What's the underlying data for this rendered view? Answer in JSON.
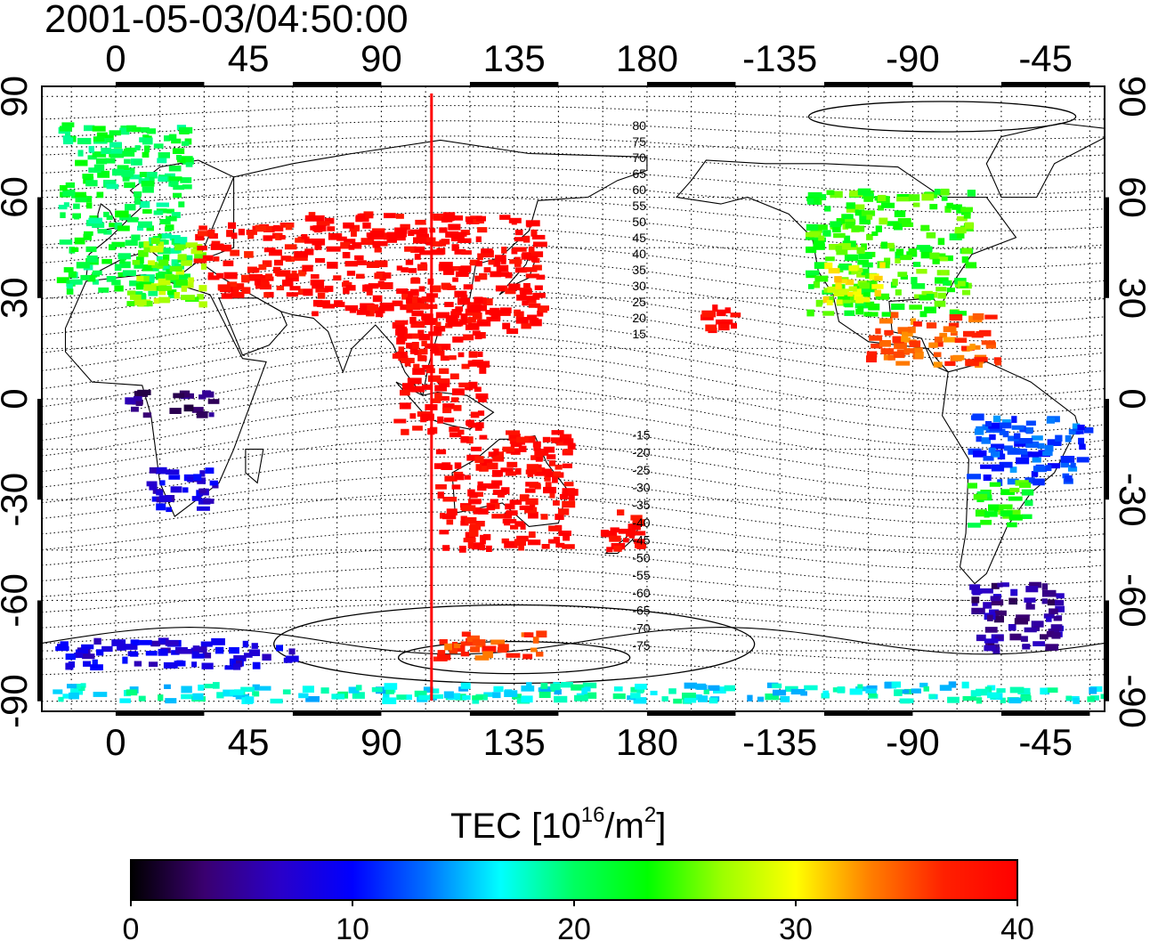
{
  "title": "2001-05-03/04:50:00",
  "colorbar": {
    "label_prefix": "TEC  [10",
    "label_exp1": "16",
    "label_mid": "/m",
    "label_exp2": "2",
    "label_suffix": "]",
    "ticks": [
      "0",
      "10",
      "20",
      "30",
      "40"
    ],
    "range": [
      0,
      40
    ],
    "colormap": [
      "#000000",
      "#3a0070",
      "#2a00c8",
      "#0000ff",
      "#0070ff",
      "#00ffff",
      "#00ff60",
      "#00ff00",
      "#9cff00",
      "#ffff00",
      "#ff8000",
      "#ff2000",
      "#ff0000"
    ]
  },
  "axes": {
    "x_ticks_top": [
      "0",
      "45",
      "90",
      "135",
      "180",
      "-135",
      "-90",
      "-45"
    ],
    "x_ticks_bottom": [
      "0",
      "45",
      "90",
      "135",
      "180",
      "-135",
      "-90",
      "-45"
    ],
    "y_ticks_left": [
      "90",
      "60",
      "30",
      "0",
      "-30",
      "-60",
      "-90"
    ],
    "y_ticks_right": [
      "90",
      "60",
      "30",
      "0",
      "-30",
      "-60",
      "-90"
    ],
    "lon_range": [
      -25,
      335
    ],
    "lat_range": [
      -93,
      93
    ],
    "grid": "dotted, every 15 degrees",
    "vertical_marker_lon": 107
  },
  "contour_labels": [
    "80",
    "75",
    "70",
    "65",
    "60",
    "55",
    "50",
    "45",
    "40",
    "35",
    "30",
    "25",
    "20",
    "15",
    "-15",
    "-20",
    "-25",
    "-30",
    "-35",
    "-40",
    "-45",
    "-50",
    "-55",
    "-60",
    "-65",
    "-70",
    "-75"
  ],
  "chart_data": {
    "type": "heatmap",
    "title": "2001-05-03/04:50:00",
    "colorbar_label": "TEC [10^16/m^2]",
    "value_range": [
      0,
      40
    ],
    "xlabel": "",
    "ylabel": "",
    "x_range": [
      -25,
      335
    ],
    "y_range": [
      -93,
      93
    ],
    "regions": [
      {
        "lon": [
          -18,
          25
        ],
        "lat": [
          30,
          82
        ],
        "tec": 21
      },
      {
        "lon": [
          5,
          30
        ],
        "lat": [
          28,
          48
        ],
        "tec": 26
      },
      {
        "lon": [
          28,
          65
        ],
        "lat": [
          30,
          52
        ],
        "tec": 39
      },
      {
        "lon": [
          65,
          105
        ],
        "lat": [
          25,
          55
        ],
        "tec": 40
      },
      {
        "lon": [
          105,
          145
        ],
        "lat": [
          20,
          55
        ],
        "tec": 40
      },
      {
        "lon": [
          95,
          125
        ],
        "lat": [
          -10,
          25
        ],
        "tec": 40
      },
      {
        "lon": [
          110,
          155
        ],
        "lat": [
          -45,
          -10
        ],
        "tec": 40
      },
      {
        "lon": [
          165,
          178
        ],
        "lat": [
          -48,
          -33
        ],
        "tec": 40
      },
      {
        "lon": [
          200,
          210
        ],
        "lat": [
          20,
          28
        ],
        "tec": 40
      },
      {
        "lon": [
          12,
          35
        ],
        "lat": [
          -33,
          -20
        ],
        "tec": 8
      },
      {
        "lon": [
          5,
          35
        ],
        "lat": [
          -5,
          2
        ],
        "tec": 4
      },
      {
        "lon": [
          235,
          290
        ],
        "lat": [
          25,
          62
        ],
        "tec": 24
      },
      {
        "lon": [
          240,
          260
        ],
        "lat": [
          28,
          40
        ],
        "tec": 30
      },
      {
        "lon": [
          255,
          300
        ],
        "lat": [
          10,
          25
        ],
        "tec": 35
      },
      {
        "lon": [
          290,
          330
        ],
        "lat": [
          -25,
          -5
        ],
        "tec": 12
      },
      {
        "lon": [
          290,
          310
        ],
        "lat": [
          -38,
          -25
        ],
        "tec": 23
      },
      {
        "lon": [
          290,
          320
        ],
        "lat": [
          -75,
          -55
        ],
        "tec": 5
      },
      {
        "lon": [
          -20,
          60
        ],
        "lat": [
          -80,
          -72
        ],
        "tec": 8
      },
      {
        "lon": [
          110,
          145
        ],
        "lat": [
          -78,
          -70
        ],
        "tec": 36
      },
      {
        "lon": [
          -20,
          335
        ],
        "lat": [
          -90,
          -85
        ],
        "tec": 17
      }
    ]
  }
}
